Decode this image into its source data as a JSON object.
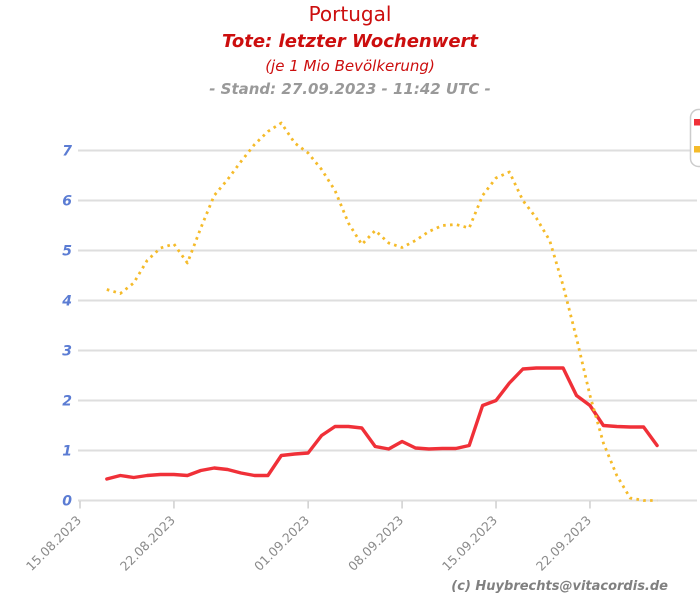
{
  "header": {
    "title": "Portugal",
    "subtitle_bold": "Tote: letzter Wochenwert",
    "subtitle_unit": "(je 1 Mio Bevölkerung)",
    "stand_line": "- Stand: 27.09.2023 - 11:42 UTC -"
  },
  "credit": "(c) Huybrechts@vitacordis.de",
  "colors": {
    "title_red": "#cc0e0e",
    "stand_gray": "#999999",
    "y_label_blue": "#5b7cd3",
    "x_label_gray": "#8a8a8a",
    "gridline": "#dedede",
    "tick": "#cfcfcf",
    "series_red": "#f03038",
    "series_yellow": "#f5bb2a"
  },
  "chart_data": {
    "type": "line",
    "title": "Portugal - Tote: letzter Wochenwert (je 1 Mio Bevölkerung)",
    "xlabel": "",
    "ylabel": "",
    "grid": true,
    "ylim": [
      0,
      7.6
    ],
    "yticks": [
      0,
      1,
      2,
      3,
      4,
      5,
      6,
      7
    ],
    "xticks": [
      {
        "label": "15.08.2023",
        "day": 0
      },
      {
        "label": "22.08.2023",
        "day": 7
      },
      {
        "label": "01.09.2023",
        "day": 17
      },
      {
        "label": "08.09.2023",
        "day": 24
      },
      {
        "label": "15.09.2023",
        "day": 31
      },
      {
        "label": "22.09.2023",
        "day": 38
      }
    ],
    "start_day_offset": 2,
    "x_dates": [
      "17.08",
      "18.08",
      "19.08",
      "20.08",
      "21.08",
      "22.08",
      "23.08",
      "24.08",
      "25.08",
      "26.08",
      "27.08",
      "28.08",
      "29.08",
      "30.08",
      "31.08",
      "01.09",
      "02.09",
      "03.09",
      "04.09",
      "05.09",
      "06.09",
      "07.09",
      "08.09",
      "09.09",
      "10.09",
      "11.09",
      "12.09",
      "13.09",
      "14.09",
      "15.09",
      "16.09",
      "17.09",
      "18.09",
      "19.09",
      "20.09",
      "21.09",
      "22.09",
      "23.09",
      "24.09",
      "25.09",
      "26.09",
      "27.09"
    ],
    "series": [
      {
        "name": "red-solid-series",
        "style": "solid",
        "color": "#f03038",
        "values": [
          0.43,
          0.5,
          0.46,
          0.5,
          0.52,
          0.52,
          0.5,
          0.6,
          0.65,
          0.62,
          0.55,
          0.5,
          0.5,
          0.9,
          0.93,
          0.95,
          1.3,
          1.48,
          1.48,
          1.45,
          1.08,
          1.03,
          1.18,
          1.05,
          1.03,
          1.04,
          1.04,
          1.1,
          1.9,
          2.0,
          2.35,
          2.63,
          2.65,
          2.65,
          2.65,
          2.1,
          1.9,
          1.5,
          1.48,
          1.47,
          1.47,
          1.1
        ]
      },
      {
        "name": "yellow-dotted-series",
        "style": "dotted",
        "color": "#f5bb2a",
        "values": [
          4.22,
          4.14,
          4.35,
          4.8,
          5.05,
          5.13,
          4.75,
          5.45,
          6.1,
          6.42,
          6.78,
          7.12,
          7.38,
          7.55,
          7.15,
          6.95,
          6.62,
          6.2,
          5.55,
          5.12,
          5.4,
          5.15,
          5.06,
          5.2,
          5.38,
          5.5,
          5.52,
          5.45,
          6.1,
          6.45,
          6.57,
          6.0,
          5.65,
          5.2,
          4.3,
          3.25,
          2.1,
          1.15,
          0.5,
          0.05,
          0.0,
          0.0
        ]
      }
    ],
    "legend_position": "top-right, clipped at image edge (only color markers visible)"
  }
}
